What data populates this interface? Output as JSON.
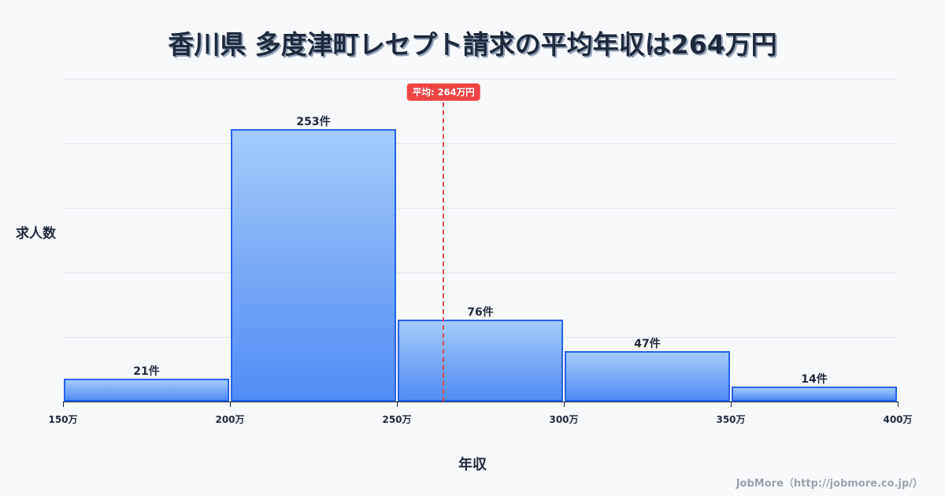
{
  "title": "香川県 多度津町レセプト請求の平均年収は264万円",
  "chart_data": {
    "type": "bar",
    "title": "香川県 多度津町レセプト請求の平均年収は264万円",
    "xlabel": "年収",
    "ylabel": "求人数",
    "categories": [
      "150万-200万",
      "200万-250万",
      "250万-300万",
      "300万-350万",
      "350万-400万"
    ],
    "bin_edges": [
      150,
      200,
      250,
      300,
      350,
      400
    ],
    "values": [
      21,
      253,
      76,
      47,
      14
    ],
    "value_labels": [
      "21件",
      "253件",
      "76件",
      "47件",
      "14件"
    ],
    "x_tick_labels": [
      "150万",
      "200万",
      "250万",
      "300万",
      "350万",
      "400万"
    ],
    "ylim": [
      0,
      300
    ],
    "y_gridlines": [
      0,
      60,
      120,
      180,
      240,
      300
    ],
    "grid": true,
    "mean": 264,
    "mean_label": "平均: 264万円",
    "colors": {
      "bar_border": "#2563eb",
      "bar_top": "#a3cbfb",
      "bar_bottom": "#4f8cf4",
      "mean_line": "#ef4444"
    }
  },
  "credit": "JobMore（http://jobmore.co.jp/）"
}
